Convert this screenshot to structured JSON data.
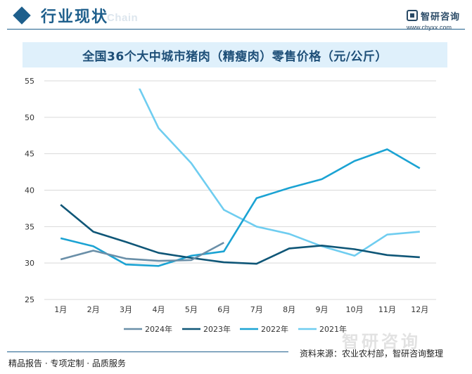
{
  "header": {
    "title": "行业现状",
    "ghost_text": "Chain"
  },
  "logo": {
    "name": "智研咨询",
    "url": "www.chyxx.com"
  },
  "footer": {
    "tags": "精品报告 · 专项定制 · 品质服务",
    "source": "资料来源：农业农村部，智研咨询整理",
    "watermark": "智研咨询"
  },
  "colors": {
    "brand": "#1e5f8c",
    "title_band": "#dff0fb"
  },
  "chart_data": {
    "type": "line",
    "title": "全国36个大中城市猪肉（精瘦肉）零售价格（元/公斤）",
    "xlabel": "",
    "ylabel": "",
    "categories": [
      "1月",
      "2月",
      "3月",
      "4月",
      "5月",
      "6月",
      "7月",
      "8月",
      "9月",
      "10月",
      "11月",
      "12月"
    ],
    "y_ticks": [
      "25",
      "30",
      "35",
      "40",
      "45",
      "50",
      "55"
    ],
    "ylim": [
      25,
      55
    ],
    "grid": true,
    "legend_position": "bottom",
    "series": [
      {
        "name": "2024年",
        "color": "#6a8fa8",
        "values": [
          30.5,
          31.7,
          30.6,
          30.3,
          30.4,
          32.8,
          null,
          null,
          null,
          null,
          null,
          null
        ]
      },
      {
        "name": "2023年",
        "color": "#0f5677",
        "values": [
          38.0,
          34.3,
          32.9,
          31.4,
          30.7,
          30.1,
          29.9,
          32.0,
          32.4,
          31.9,
          31.1,
          30.8
        ]
      },
      {
        "name": "2022年",
        "color": "#1ba3d3",
        "values": [
          33.4,
          32.3,
          29.8,
          29.6,
          31.0,
          31.6,
          38.9,
          40.3,
          41.5,
          44.0,
          45.6,
          43.0
        ]
      },
      {
        "name": "2021年",
        "color": "#6fcdf0",
        "values": [
          null,
          null,
          57.8,
          48.5,
          43.7,
          37.3,
          35.0,
          34.0,
          32.3,
          31.0,
          33.9,
          34.3
        ]
      }
    ]
  }
}
